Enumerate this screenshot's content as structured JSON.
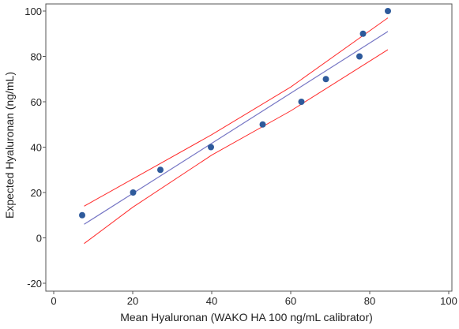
{
  "chart_data": {
    "type": "scatter",
    "title": "",
    "xlabel": "Mean Hyaluronan (WAKO HA 100 ng/mL calibrator)",
    "ylabel": "Expected Hyaluronan (ng/mL)",
    "xlim": [
      0,
      100
    ],
    "ylim": [
      -20,
      100
    ],
    "x_ticks": [
      0,
      20,
      40,
      60,
      80,
      100
    ],
    "y_ticks": [
      -20,
      0,
      20,
      40,
      60,
      80,
      100
    ],
    "grid": false,
    "legend": "none",
    "points": [
      {
        "x": 7.2,
        "y": 10
      },
      {
        "x": 20.1,
        "y": 20
      },
      {
        "x": 27.0,
        "y": 30
      },
      {
        "x": 39.8,
        "y": 40
      },
      {
        "x": 52.9,
        "y": 50
      },
      {
        "x": 62.7,
        "y": 60
      },
      {
        "x": 68.9,
        "y": 70
      },
      {
        "x": 77.4,
        "y": 80
      },
      {
        "x": 78.3,
        "y": 90
      },
      {
        "x": 84.6,
        "y": 100
      }
    ],
    "fit_line": {
      "x": [
        7.7,
        84.6
      ],
      "y": [
        6,
        91
      ]
    },
    "confidence_upper": {
      "x": [
        7.7,
        20,
        40,
        60,
        84.6
      ],
      "y": [
        14,
        26,
        45.5,
        66.5,
        97
      ]
    },
    "confidence_lower": {
      "x": [
        7.7,
        20,
        40,
        60,
        84.6
      ],
      "y": [
        -2.5,
        13.5,
        36.5,
        56,
        83
      ]
    },
    "colors": {
      "points": "#2e5a9b",
      "fit_line": "#7575c4",
      "confidence": "#ff2a2a",
      "frame": "#555555"
    }
  }
}
